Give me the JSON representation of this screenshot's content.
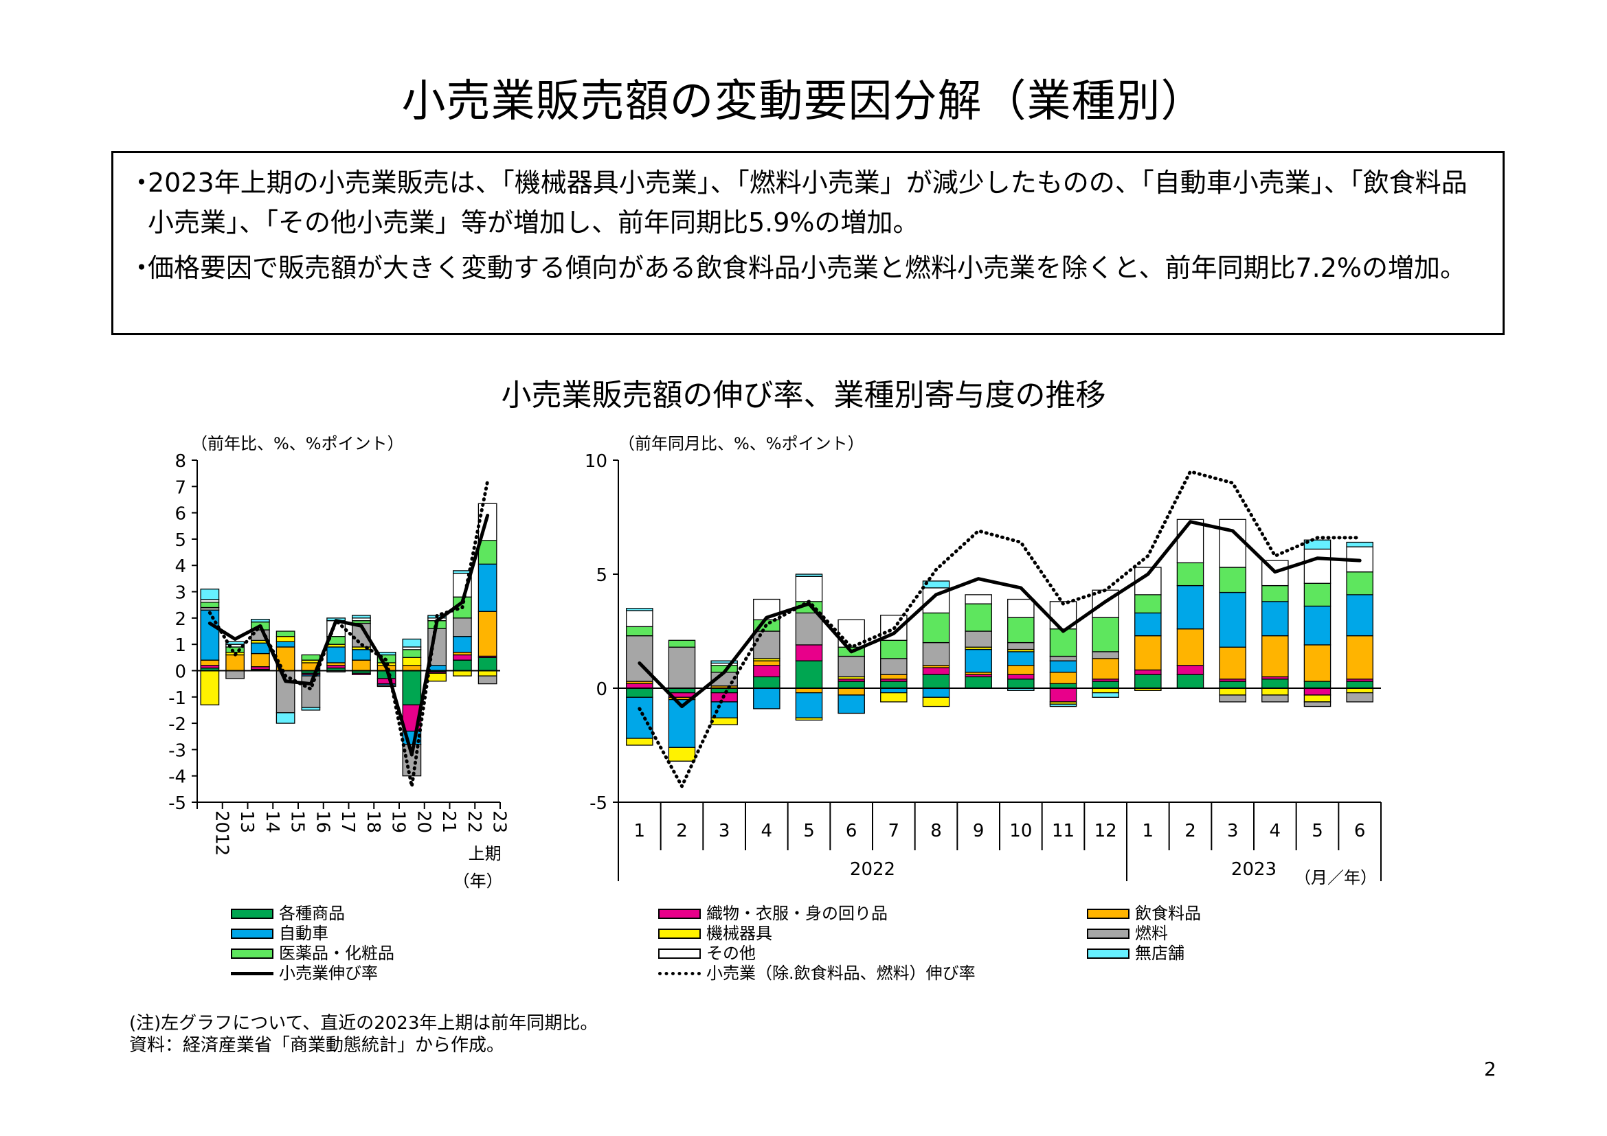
{
  "title": "小売業販売額の変動要因分解（業種別）",
  "summary": [
    {
      "mark": "・",
      "text": "2023年上期の小売業販売は、「機械器具小売業」、「燃料小売業」が減少したものの、「自動車小売業」、「飲食料品小売業」、「その他小売業」等が増加し、前年同期比5.9%の増加。"
    },
    {
      "mark": "・",
      "text": "価格要因で販売額が大きく変動する傾向がある飲食料品小売業と燃料小売業を除くと、前年同期比7.2%の増加。"
    }
  ],
  "charts_title": "小売業販売額の伸び率、業種別寄与度の推移",
  "series_colors": {
    "department": "#00a651",
    "textile": "#e8008a",
    "food": "#ffb400",
    "auto": "#00a7e8",
    "machinery": "#fff200",
    "fuel": "#a6a6a6",
    "drug": "#5ee65e",
    "other": "#ffffff",
    "nonstore": "#66f0ff"
  },
  "chart_data": [
    {
      "type": "bar",
      "stacked": true,
      "ylabel": "（前年比、%、%ポイント）",
      "ylim": [
        -5,
        8
      ],
      "yticks": [
        -5,
        -4,
        -3,
        -2,
        -1,
        0,
        1,
        2,
        3,
        4,
        5,
        6,
        7,
        8
      ],
      "categories": [
        "2012",
        "13",
        "14",
        "15",
        "16",
        "17",
        "18",
        "19",
        "20",
        "21",
        "22",
        "23"
      ],
      "category_sublabel": "上期",
      "xunit": "（年）",
      "series": [
        {
          "name": "各種商品",
          "key": "department",
          "values": [
            0.1,
            0.0,
            0.05,
            0.0,
            -0.1,
            0.1,
            -0.1,
            -0.3,
            -1.3,
            -0.05,
            0.4,
            0.5
          ]
        },
        {
          "name": "織物・衣服・身の回り品",
          "key": "textile",
          "values": [
            0.1,
            0.0,
            0.1,
            0.0,
            -0.05,
            0.1,
            -0.05,
            -0.2,
            -1.0,
            -0.05,
            0.2,
            0.05
          ]
        },
        {
          "name": "飲食料品",
          "key": "food",
          "values": [
            0.2,
            0.6,
            0.5,
            0.9,
            0.3,
            0.1,
            0.4,
            0.2,
            0.2,
            0.0,
            0.1,
            1.7
          ]
        },
        {
          "name": "自動車",
          "key": "auto",
          "values": [
            1.9,
            0.0,
            0.4,
            0.2,
            -0.05,
            0.6,
            0.4,
            -0.05,
            -0.5,
            0.2,
            0.6,
            1.8
          ]
        },
        {
          "name": "機械器具",
          "key": "machinery",
          "values": [
            -1.3,
            0.1,
            0.1,
            0.2,
            0.1,
            0.1,
            0.1,
            0.1,
            0.3,
            -0.3,
            -0.2,
            -0.2
          ]
        },
        {
          "name": "燃料",
          "key": "fuel",
          "values": [
            0.1,
            -0.3,
            0.4,
            -1.6,
            -1.2,
            -0.05,
            0.9,
            -0.05,
            -1.2,
            1.4,
            0.7,
            -0.3
          ]
        },
        {
          "name": "医薬品・化粧品",
          "key": "drug",
          "values": [
            0.2,
            0.2,
            0.3,
            0.2,
            0.2,
            0.3,
            0.1,
            0.3,
            0.3,
            0.3,
            0.8,
            0.9
          ]
        },
        {
          "name": "その他",
          "key": "other",
          "values": [
            0.1,
            0.1,
            0.0,
            0.0,
            0.0,
            0.6,
            0.1,
            0.0,
            0.1,
            0.1,
            0.9,
            1.4
          ]
        },
        {
          "name": "無店舗",
          "key": "nonstore",
          "values": [
            0.4,
            0.1,
            0.1,
            -0.4,
            -0.1,
            0.1,
            0.1,
            0.1,
            0.3,
            0.1,
            0.1,
            0.0
          ]
        }
      ],
      "lines": [
        {
          "name": "小売業伸び率",
          "style": "solid",
          "values": [
            1.8,
            1.2,
            1.7,
            -0.4,
            -0.5,
            1.9,
            1.7,
            0.1,
            -3.2,
            1.9,
            2.6,
            5.9
          ]
        },
        {
          "name": "小売業（除.飲食料品、燃料）伸び率",
          "style": "dotted",
          "values": [
            2.2,
            0.6,
            1.7,
            -0.2,
            -0.7,
            1.9,
            1.0,
            0.4,
            -4.4,
            2.1,
            2.4,
            7.2
          ]
        }
      ]
    },
    {
      "type": "bar",
      "stacked": true,
      "ylabel": "（前年同月比、%、%ポイント）",
      "ylim": [
        -5,
        10
      ],
      "yticks": [
        -5,
        0,
        5,
        10
      ],
      "categories": [
        "1",
        "2",
        "3",
        "4",
        "5",
        "6",
        "7",
        "8",
        "9",
        "10",
        "11",
        "12",
        "1",
        "2",
        "3",
        "4",
        "5",
        "6"
      ],
      "year_groups": [
        {
          "label": "2022",
          "count": 12
        },
        {
          "label": "2023",
          "count": 6
        }
      ],
      "xunit": "（月／年）",
      "series": [
        {
          "name": "各種商品",
          "key": "department",
          "values": [
            -0.4,
            -0.2,
            -0.2,
            0.5,
            1.2,
            0.3,
            0.3,
            0.6,
            0.5,
            0.4,
            0.2,
            0.3,
            0.6,
            0.6,
            0.3,
            0.4,
            0.3,
            0.3
          ]
        },
        {
          "name": "織物・衣服・身の回り品",
          "key": "textile",
          "values": [
            0.2,
            -0.2,
            -0.4,
            0.5,
            0.7,
            0.1,
            0.1,
            0.3,
            0.1,
            0.2,
            -0.6,
            0.1,
            0.2,
            0.4,
            0.1,
            0.1,
            -0.3,
            0.1
          ]
        },
        {
          "name": "飲食料品",
          "key": "food",
          "values": [
            0.1,
            -0.1,
            0.1,
            0.2,
            -0.2,
            -0.3,
            0.2,
            0.1,
            0.1,
            0.4,
            0.5,
            0.9,
            1.5,
            1.6,
            1.4,
            1.8,
            1.6,
            1.9
          ]
        },
        {
          "name": "自動車",
          "key": "auto",
          "values": [
            -1.8,
            -2.1,
            -0.7,
            -0.9,
            -1.1,
            -0.8,
            -0.2,
            -0.4,
            1.0,
            0.6,
            0.5,
            0.0,
            1.0,
            1.9,
            2.4,
            1.5,
            1.7,
            1.8
          ]
        },
        {
          "name": "機械器具",
          "key": "machinery",
          "values": [
            -0.3,
            -0.6,
            -0.3,
            0.1,
            -0.1,
            0.1,
            -0.4,
            -0.4,
            0.1,
            0.1,
            -0.1,
            -0.2,
            -0.1,
            0.0,
            -0.3,
            -0.3,
            -0.3,
            -0.2
          ]
        },
        {
          "name": "燃料",
          "key": "fuel",
          "values": [
            2.0,
            1.8,
            0.6,
            1.2,
            1.4,
            0.9,
            0.7,
            1.0,
            0.7,
            0.3,
            0.2,
            0.3,
            0.0,
            0.0,
            -0.3,
            -0.3,
            -0.2,
            -0.4
          ]
        },
        {
          "name": "医薬品・化粧品",
          "key": "drug",
          "values": [
            0.4,
            0.3,
            0.3,
            0.5,
            0.5,
            0.4,
            0.8,
            1.3,
            1.2,
            1.1,
            1.2,
            1.5,
            0.8,
            1.0,
            1.1,
            0.7,
            1.0,
            1.0
          ]
        },
        {
          "name": "その他",
          "key": "other",
          "values": [
            0.7,
            0.0,
            0.1,
            0.9,
            1.1,
            1.2,
            1.1,
            1.1,
            0.4,
            0.8,
            1.2,
            1.2,
            1.2,
            1.9,
            2.1,
            1.1,
            1.5,
            1.1
          ]
        },
        {
          "name": "無店舗",
          "key": "nonstore",
          "values": [
            0.1,
            0.0,
            0.1,
            0.0,
            0.1,
            0.0,
            0.0,
            0.3,
            0.0,
            -0.1,
            -0.1,
            -0.2,
            0.0,
            0.0,
            0.0,
            0.0,
            0.4,
            0.2
          ]
        }
      ],
      "lines": [
        {
          "name": "小売業伸び率",
          "style": "solid",
          "values": [
            1.1,
            -0.8,
            0.7,
            3.1,
            3.7,
            1.6,
            2.4,
            4.1,
            4.8,
            4.4,
            2.5,
            3.8,
            5.0,
            7.3,
            6.9,
            5.1,
            5.7,
            5.6
          ]
        },
        {
          "name": "小売業（除.飲食料品、燃料）伸び率",
          "style": "dotted",
          "values": [
            -0.9,
            -4.3,
            -0.3,
            2.8,
            3.8,
            1.8,
            2.6,
            5.2,
            6.9,
            6.4,
            3.7,
            4.3,
            5.8,
            9.5,
            9.0,
            5.8,
            6.6,
            6.6
          ]
        }
      ]
    }
  ],
  "legend": {
    "items": [
      {
        "label": "各種商品",
        "key": "department",
        "kind": "box"
      },
      {
        "label": "織物・衣服・身の回り品",
        "key": "textile",
        "kind": "box"
      },
      {
        "label": "飲食料品",
        "key": "food",
        "kind": "box"
      },
      {
        "label": "自動車",
        "key": "auto",
        "kind": "box"
      },
      {
        "label": "機械器具",
        "key": "machinery",
        "kind": "box"
      },
      {
        "label": "燃料",
        "key": "fuel",
        "kind": "box"
      },
      {
        "label": "医薬品・化粧品",
        "key": "drug",
        "kind": "box"
      },
      {
        "label": "その他",
        "key": "other",
        "kind": "box"
      },
      {
        "label": "無店舗",
        "key": "nonstore",
        "kind": "box"
      },
      {
        "label": "小売業伸び率",
        "kind": "solid"
      },
      {
        "label": "小売業（除.飲食料品、燃料）伸び率",
        "kind": "dotted"
      }
    ]
  },
  "notes": [
    "(注)左グラフについて、直近の2023年上期は前年同期比。",
    "資料：経済産業省「商業動態統計」から作成。"
  ],
  "page_number": "2"
}
